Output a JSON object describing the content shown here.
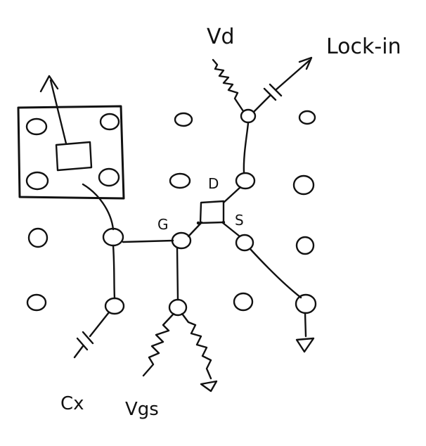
{
  "labels": {
    "vd": "Vd",
    "lockin": "Lock-in",
    "drain": "D",
    "gate": "G",
    "source": "S",
    "cx": "Cx",
    "vgs": "Vgs"
  },
  "colors": {
    "ink": "#111111",
    "paper": "#ffffff"
  }
}
